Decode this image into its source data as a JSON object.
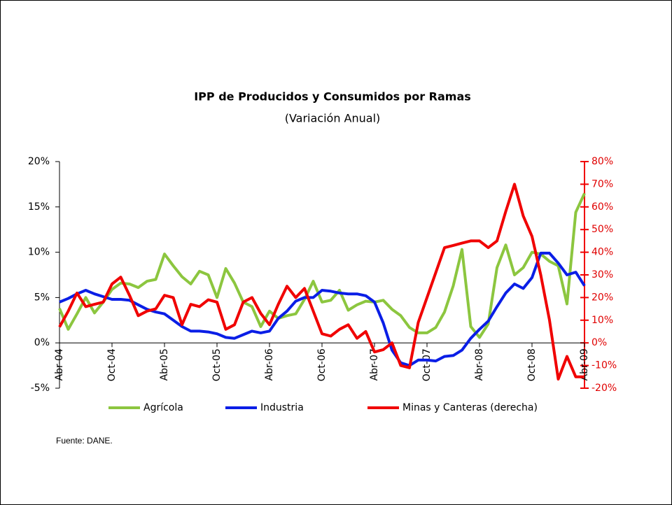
{
  "chart_data": {
    "type": "line",
    "title": "IPP de Producidos y Consumidos por Ramas",
    "subtitle": "(Variación Anual)",
    "source": "Fuente: DANE.",
    "categories": [
      "Abr-04",
      null,
      null,
      null,
      null,
      null,
      "Oct-04",
      null,
      null,
      null,
      null,
      null,
      "Abr-05",
      null,
      null,
      null,
      null,
      null,
      "Oct-05",
      null,
      null,
      null,
      null,
      null,
      "Abr-06",
      null,
      null,
      null,
      null,
      null,
      "Oct-06",
      null,
      null,
      null,
      null,
      null,
      "Abr-07",
      null,
      null,
      null,
      null,
      null,
      "Oct-07",
      null,
      null,
      null,
      null,
      null,
      "Abr-08",
      null,
      null,
      null,
      null,
      null,
      "Oct-08",
      null,
      null,
      null,
      null,
      null,
      "Abr-09"
    ],
    "series": [
      {
        "name": "Agrícola",
        "color": "#8cc63f",
        "values": [
          3.8,
          1.5,
          3.2,
          5.0,
          3.3,
          4.5,
          5.9,
          6.6,
          6.5,
          6.1,
          6.8,
          7.0,
          9.8,
          8.5,
          7.3,
          6.5,
          7.9,
          7.5,
          5.0,
          8.2,
          6.6,
          4.5,
          4.0,
          1.8,
          3.5,
          2.7,
          3.0,
          3.2,
          4.8,
          6.8,
          4.5,
          4.7,
          5.8,
          3.6,
          4.2,
          4.6,
          4.5,
          4.7,
          3.7,
          3.0,
          1.7,
          1.1,
          1.1,
          1.7,
          3.4,
          6.3,
          10.3,
          1.8,
          0.6,
          2.1,
          8.3,
          10.8,
          7.5,
          8.3,
          10.0,
          9.8,
          9.0,
          8.5,
          4.3,
          14.4,
          16.5
        ]
      },
      {
        "name": "Industria",
        "color": "#0a1ee6",
        "values": [
          4.5,
          4.9,
          5.4,
          5.8,
          5.4,
          5.1,
          4.8,
          4.8,
          4.7,
          4.2,
          3.7,
          3.4,
          3.2,
          2.5,
          1.8,
          1.3,
          1.3,
          1.2,
          1.0,
          0.6,
          0.5,
          0.9,
          1.3,
          1.1,
          1.3,
          2.7,
          3.5,
          4.6,
          5.0,
          5.0,
          5.8,
          5.7,
          5.5,
          5.4,
          5.4,
          5.2,
          4.5,
          2.2,
          -0.8,
          -2.2,
          -2.5,
          -1.9,
          -1.9,
          -2.0,
          -1.5,
          -1.4,
          -0.8,
          0.5,
          1.5,
          2.4,
          4.0,
          5.5,
          6.5,
          6.0,
          7.2,
          9.9,
          9.9,
          8.8,
          7.5,
          7.8,
          6.3
        ]
      },
      {
        "name": "Minas y Canteras (derecha)",
        "color": "#f00000",
        "axis": "y2",
        "values": [
          7,
          14,
          22,
          16,
          17,
          18,
          26,
          29,
          21,
          12,
          14,
          15,
          21,
          20,
          8,
          17,
          16,
          19,
          18,
          6,
          8,
          18,
          20,
          13,
          8,
          17,
          25,
          20,
          24,
          14,
          4,
          3,
          6,
          8,
          2,
          5,
          -4,
          -3,
          0,
          -10,
          -11,
          9,
          20,
          31,
          42,
          43,
          44,
          45,
          45,
          42,
          45,
          58,
          70,
          56,
          47,
          30,
          10,
          -16,
          -6,
          -15,
          -15
        ]
      }
    ],
    "ylim": [
      -5,
      20
    ],
    "yticks": [
      {
        "value": -5,
        "label": "-5%"
      },
      {
        "value": 0,
        "label": "0%"
      },
      {
        "value": 5,
        "label": "5%"
      },
      {
        "value": 10,
        "label": "10%"
      },
      {
        "value": 15,
        "label": "15%"
      },
      {
        "value": 20,
        "label": "20%"
      }
    ],
    "y2lim": [
      -20,
      80
    ],
    "y2ticks": [
      {
        "value": -20,
        "label": "-20%"
      },
      {
        "value": -10,
        "label": "-10%"
      },
      {
        "value": 0,
        "label": "0%"
      },
      {
        "value": 10,
        "label": "10%"
      },
      {
        "value": 20,
        "label": "20%"
      },
      {
        "value": 30,
        "label": "30%"
      },
      {
        "value": 40,
        "label": "40%"
      },
      {
        "value": 50,
        "label": "50%"
      },
      {
        "value": 60,
        "label": "60%"
      },
      {
        "value": 70,
        "label": "70%"
      },
      {
        "value": 80,
        "label": "80%"
      }
    ],
    "y2color": "#f00000",
    "legend": "bottom"
  }
}
